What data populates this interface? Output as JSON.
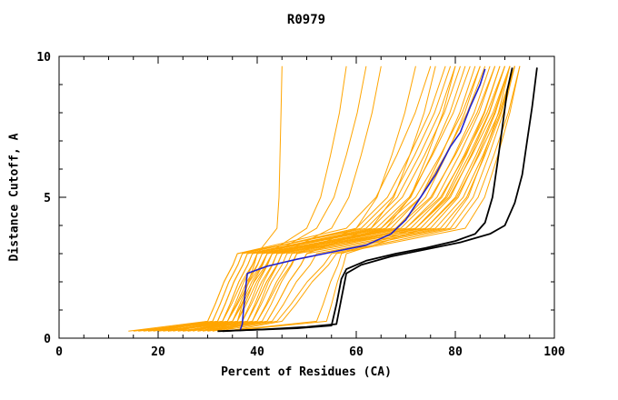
{
  "chart_data": {
    "type": "line",
    "title": "R0979",
    "xlabel": "Percent of Residues (CA)",
    "ylabel": "Distance Cutoff, A",
    "xlim": [
      0,
      100
    ],
    "ylim": [
      0,
      10
    ],
    "grid": false,
    "legend": null,
    "x_ticks": {
      "major": [
        0,
        20,
        40,
        60,
        80,
        100
      ],
      "labels": [
        "0",
        "20",
        "40",
        "60",
        "80",
        "100"
      ],
      "minor_step": 5
    },
    "y_ticks": {
      "major": [
        0,
        5,
        10
      ],
      "labels": [
        "0",
        "5",
        "10"
      ],
      "minor_step": 1
    },
    "colors": {
      "background": "#FFFFFF",
      "axis": "#000000",
      "models": "#FFA500",
      "native_black": "#000000",
      "highlight_blue": "#2222CC"
    },
    "series": {
      "orange_models": {
        "name": "model-curves",
        "color": "#FFA500",
        "width": 1,
        "y_levels": [
          0.25,
          0.6,
          1.2,
          2.0,
          2.6,
          3.0,
          3.4,
          3.9,
          5.0,
          6.5,
          8.0,
          9.65
        ],
        "x_at_levels": [
          [
            14,
            30,
            31.5,
            33.3,
            35.1,
            36,
            47.7,
            62,
            68.3,
            72.8,
            76.8,
            80
          ],
          [
            15,
            32,
            33.5,
            35.3,
            37.1,
            38,
            50.2,
            65,
            72,
            77,
            81.4,
            85
          ],
          [
            16,
            31,
            32.5,
            34.3,
            36.1,
            37,
            47.4,
            60,
            66.3,
            70.8,
            74.8,
            78
          ],
          [
            17,
            33,
            34.8,
            36.9,
            39,
            40,
            52.6,
            68,
            75,
            80,
            84.4,
            88
          ],
          [
            18,
            30,
            31.5,
            33.3,
            35.1,
            36,
            45.9,
            58,
            64,
            68.2,
            71.9,
            75
          ],
          [
            18,
            34,
            35.8,
            37.9,
            40,
            41,
            54.1,
            70,
            77,
            82,
            86.4,
            90
          ],
          [
            19,
            32,
            33.5,
            35.3,
            37.1,
            38,
            49.7,
            64,
            70.7,
            75.4,
            79.6,
            83
          ],
          [
            20,
            35,
            36.8,
            38.9,
            41,
            42,
            55.5,
            72,
            78.7,
            83.4,
            87.6,
            91
          ],
          [
            20,
            31,
            32.5,
            34.3,
            36.1,
            37,
            47.8,
            61,
            67.3,
            71.8,
            75.8,
            79
          ],
          [
            21,
            36,
            37.8,
            39.9,
            42,
            43,
            57,
            74,
            80.3,
            84.8,
            88.8,
            92
          ],
          [
            22,
            33,
            34.5,
            36.3,
            38.1,
            39,
            51.2,
            66,
            73,
            78,
            82.4,
            86
          ],
          [
            22,
            37,
            38.8,
            40.9,
            43,
            44,
            58.4,
            76,
            81.6,
            85.6,
            89.1,
            92
          ],
          [
            23,
            34,
            35.5,
            37.3,
            39.1,
            40,
            53.1,
            69,
            75.3,
            79.8,
            83.8,
            87
          ],
          [
            24,
            38,
            39.8,
            41.9,
            44,
            45,
            56.7,
            71,
            77.3,
            81.8,
            85.8,
            89
          ],
          [
            24,
            32,
            33.5,
            35.3,
            37.1,
            38,
            49.3,
            63,
            69.3,
            73.8,
            77.8,
            81
          ],
          [
            25,
            39,
            40.8,
            42.9,
            45,
            46,
            58.2,
            73,
            79,
            83.2,
            86.9,
            90
          ],
          [
            26,
            35,
            36.5,
            38.3,
            40.1,
            41,
            52.7,
            67,
            73,
            77.2,
            80.9,
            84
          ],
          [
            26,
            40,
            41.8,
            43.9,
            46,
            47,
            59.6,
            75,
            80.6,
            84.6,
            88.1,
            91
          ],
          [
            27,
            36,
            37.5,
            39.3,
            41.1,
            42,
            54.6,
            70,
            76.3,
            80.8,
            84.8,
            88
          ],
          [
            28,
            41,
            42.8,
            44.9,
            47,
            48,
            61.1,
            77,
            82.3,
            86,
            89.3,
            92
          ],
          [
            28,
            33,
            34.5,
            36.3,
            38.1,
            39,
            50.7,
            65,
            71,
            75.2,
            78.9,
            82
          ],
          [
            29,
            42,
            44,
            46.4,
            48.8,
            50,
            62.6,
            78,
            82.6,
            85.8,
            88.7,
            91
          ],
          [
            30,
            37,
            38.5,
            40.3,
            42.1,
            43,
            54.3,
            68,
            74,
            78.2,
            81.9,
            85
          ],
          [
            30,
            43,
            45.3,
            47.9,
            50.7,
            52,
            64.2,
            79,
            83.6,
            86.8,
            89.7,
            92
          ],
          [
            31,
            38,
            39.5,
            41.3,
            43.1,
            44,
            56.6,
            72,
            78,
            82.2,
            85.9,
            89
          ],
          [
            32,
            44,
            46.8,
            50.1,
            53.4,
            55,
            66.3,
            80,
            84.6,
            87.8,
            90.7,
            93
          ],
          [
            33,
            39,
            40.5,
            42.3,
            44.1,
            45,
            54.5,
            66,
            70.9,
            74.4,
            77.5,
            80
          ],
          [
            34,
            45,
            47.8,
            51.1,
            54.4,
            56,
            67.7,
            82,
            85.9,
            88.6,
            91,
            93
          ],
          [
            25,
            36,
            37,
            38.2,
            39.4,
            40,
            41.8,
            44,
            44.4,
            44.6,
            44.8,
            45
          ],
          [
            22,
            34,
            36,
            38.4,
            40.8,
            42,
            45.6,
            50,
            52.8,
            54.8,
            56.6,
            58
          ],
          [
            28,
            38,
            39.8,
            41.9,
            44,
            45,
            49.5,
            55,
            58.5,
            61,
            63.2,
            65
          ],
          [
            30,
            40,
            42,
            44.4,
            46.8,
            48,
            53.4,
            60,
            64.2,
            67.2,
            69.8,
            72
          ],
          [
            26,
            35,
            37,
            39.4,
            41.8,
            43,
            47.1,
            52,
            55.5,
            58,
            60.2,
            62
          ],
          [
            31,
            42,
            44,
            46.4,
            48.8,
            50,
            55.9,
            63,
            67.6,
            70.8,
            73.7,
            76
          ],
          [
            33,
            52,
            53.3,
            54.8,
            56.3,
            57,
            63.8,
            72,
            78.3,
            82.8,
            86.8,
            90
          ],
          [
            34,
            54,
            55,
            56.2,
            57.4,
            58,
            65.2,
            74,
            80,
            84.2,
            87.9,
            91
          ]
        ]
      },
      "highlights": [
        {
          "name": "blue-model-curve",
          "color": "#2222CC",
          "width": 1.6,
          "points": [
            [
              36.5,
              0.25
            ],
            [
              37,
              0.5
            ],
            [
              37.5,
              1.5
            ],
            [
              38,
              2.3
            ],
            [
              42,
              2.55
            ],
            [
              48,
              2.8
            ],
            [
              55,
              3.05
            ],
            [
              62,
              3.3
            ],
            [
              67,
              3.7
            ],
            [
              70,
              4.2
            ],
            [
              73,
              5.0
            ],
            [
              76,
              5.8
            ],
            [
              79,
              6.8
            ],
            [
              81,
              7.3
            ],
            [
              83,
              8.2
            ],
            [
              85,
              9.0
            ],
            [
              86,
              9.55
            ]
          ]
        },
        {
          "name": "black-curve-1",
          "color": "#000000",
          "width": 1.8,
          "points": [
            [
              32,
              0.25
            ],
            [
              40,
              0.3
            ],
            [
              48,
              0.35
            ],
            [
              55,
              0.45
            ],
            [
              56,
              1.2
            ],
            [
              57,
              2.1
            ],
            [
              58,
              2.45
            ],
            [
              62,
              2.75
            ],
            [
              68,
              3.0
            ],
            [
              74,
              3.2
            ],
            [
              80,
              3.45
            ],
            [
              84,
              3.7
            ],
            [
              86,
              4.1
            ],
            [
              87.5,
              5.0
            ],
            [
              88.5,
              6.2
            ],
            [
              89.5,
              7.5
            ],
            [
              90.5,
              8.8
            ],
            [
              91.5,
              9.6
            ]
          ]
        },
        {
          "name": "black-curve-2",
          "color": "#000000",
          "width": 1.8,
          "points": [
            [
              33,
              0.25
            ],
            [
              42,
              0.32
            ],
            [
              50,
              0.4
            ],
            [
              56,
              0.5
            ],
            [
              57,
              1.4
            ],
            [
              58,
              2.3
            ],
            [
              61,
              2.6
            ],
            [
              67,
              2.9
            ],
            [
              74,
              3.15
            ],
            [
              81,
              3.4
            ],
            [
              87,
              3.7
            ],
            [
              90,
              4.0
            ],
            [
              92,
              4.8
            ],
            [
              93.5,
              5.8
            ],
            [
              94.5,
              7.0
            ],
            [
              95.5,
              8.2
            ],
            [
              96.5,
              9.6
            ]
          ]
        }
      ]
    }
  }
}
